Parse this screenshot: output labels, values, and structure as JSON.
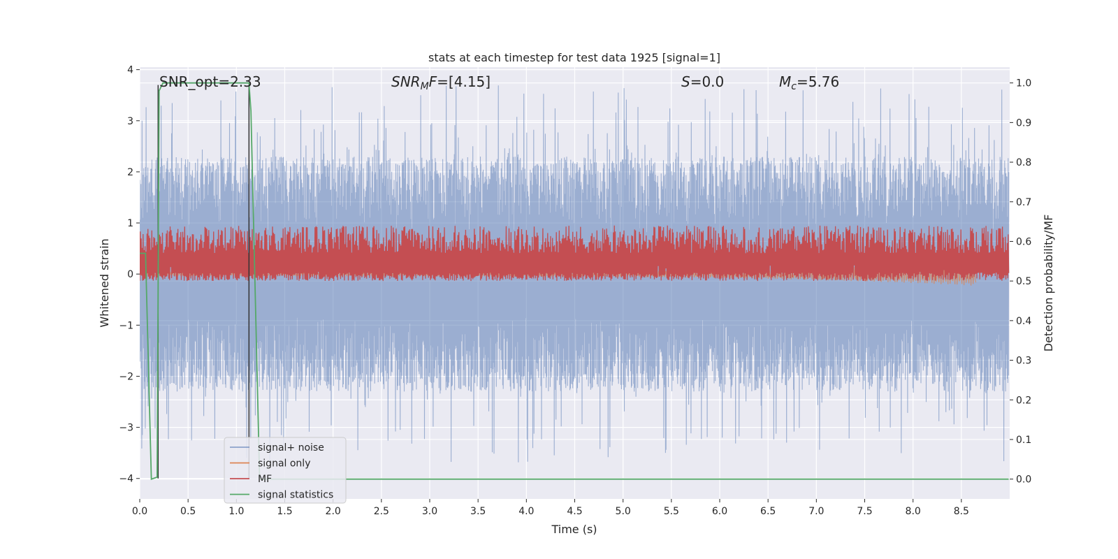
{
  "chart_data": {
    "type": "line",
    "title": "stats at each timestep for test data 1925 [signal=1]",
    "xlabel": "Time (s)",
    "ylabel": "Whitened strain",
    "ylabel_right": "Detection probability/MF",
    "xlim": [
      0.0,
      9.0
    ],
    "ylim": [
      -4.4,
      4.05
    ],
    "ylim_right": [
      -0.05,
      1.04
    ],
    "xticks": [
      "0.0",
      "0.5",
      "1.0",
      "1.5",
      "2.0",
      "2.5",
      "3.0",
      "3.5",
      "4.0",
      "4.5",
      "5.0",
      "5.5",
      "6.0",
      "6.5",
      "7.0",
      "7.5",
      "8.0",
      "8.5"
    ],
    "yticks": [
      "4",
      "3",
      "2",
      "1",
      "0",
      "−1",
      "−2",
      "−3",
      "−4"
    ],
    "yticks_right": [
      "1.0",
      "0.9",
      "0.8",
      "0.7",
      "0.6",
      "0.5",
      "0.4",
      "0.3",
      "0.2",
      "0.1",
      "0.0"
    ],
    "annotations": [
      {
        "pre": "SNR_opt=2.33",
        "italic": "",
        "sub": "",
        "post": ""
      },
      {
        "pre": "",
        "italic": "SNR",
        "sub": "M",
        "italic2": "F",
        "post": "=[4.15]"
      },
      {
        "pre": "",
        "italic": "S",
        "sub": "",
        "italic2": "",
        "post": "=0.0"
      },
      {
        "pre": "",
        "italic": "M",
        "sub": "c",
        "italic2": "",
        "post": "=5.76"
      }
    ],
    "legend": {
      "placement": "lower-left",
      "entries": [
        "signal+ noise",
        "signal only",
        "MF",
        "signal statistics"
      ]
    },
    "series": [
      {
        "name": "signal+ noise",
        "color": "#4c72b0",
        "opacity": 0.5,
        "kind": "noise",
        "amplitude_typical": 2.3,
        "amplitude_max": 3.7,
        "x_range": [
          0.0,
          8.99
        ]
      },
      {
        "name": "signal only",
        "color": "#dd8452",
        "kind": "chirp",
        "x_range": [
          0.0,
          8.65
        ],
        "end_amplitude": 0.2
      },
      {
        "name": "MF",
        "color": "#c44e52",
        "kind": "band",
        "x_range": [
          0.0,
          8.99
        ],
        "range_right": [
          0.5,
          0.64
        ]
      },
      {
        "name": "signal statistics",
        "color": "#55a868",
        "axis": "right",
        "x": [
          0.0,
          0.06,
          0.12,
          0.18,
          0.2,
          0.24,
          1.13,
          1.15,
          1.24,
          1.87,
          8.99
        ],
        "y": [
          0.57,
          0.57,
          0.0,
          0.005,
          0.98,
          1.0,
          1.0,
          0.93,
          0.0,
          0.0,
          0.0
        ]
      }
    ],
    "vlines": [
      {
        "x": 0.19,
        "color": "#333333",
        "y_range": [
          -4.0,
          3.7
        ]
      },
      {
        "x": 1.13,
        "color": "#333333",
        "y_range": [
          -4.0,
          3.7
        ]
      }
    ]
  }
}
